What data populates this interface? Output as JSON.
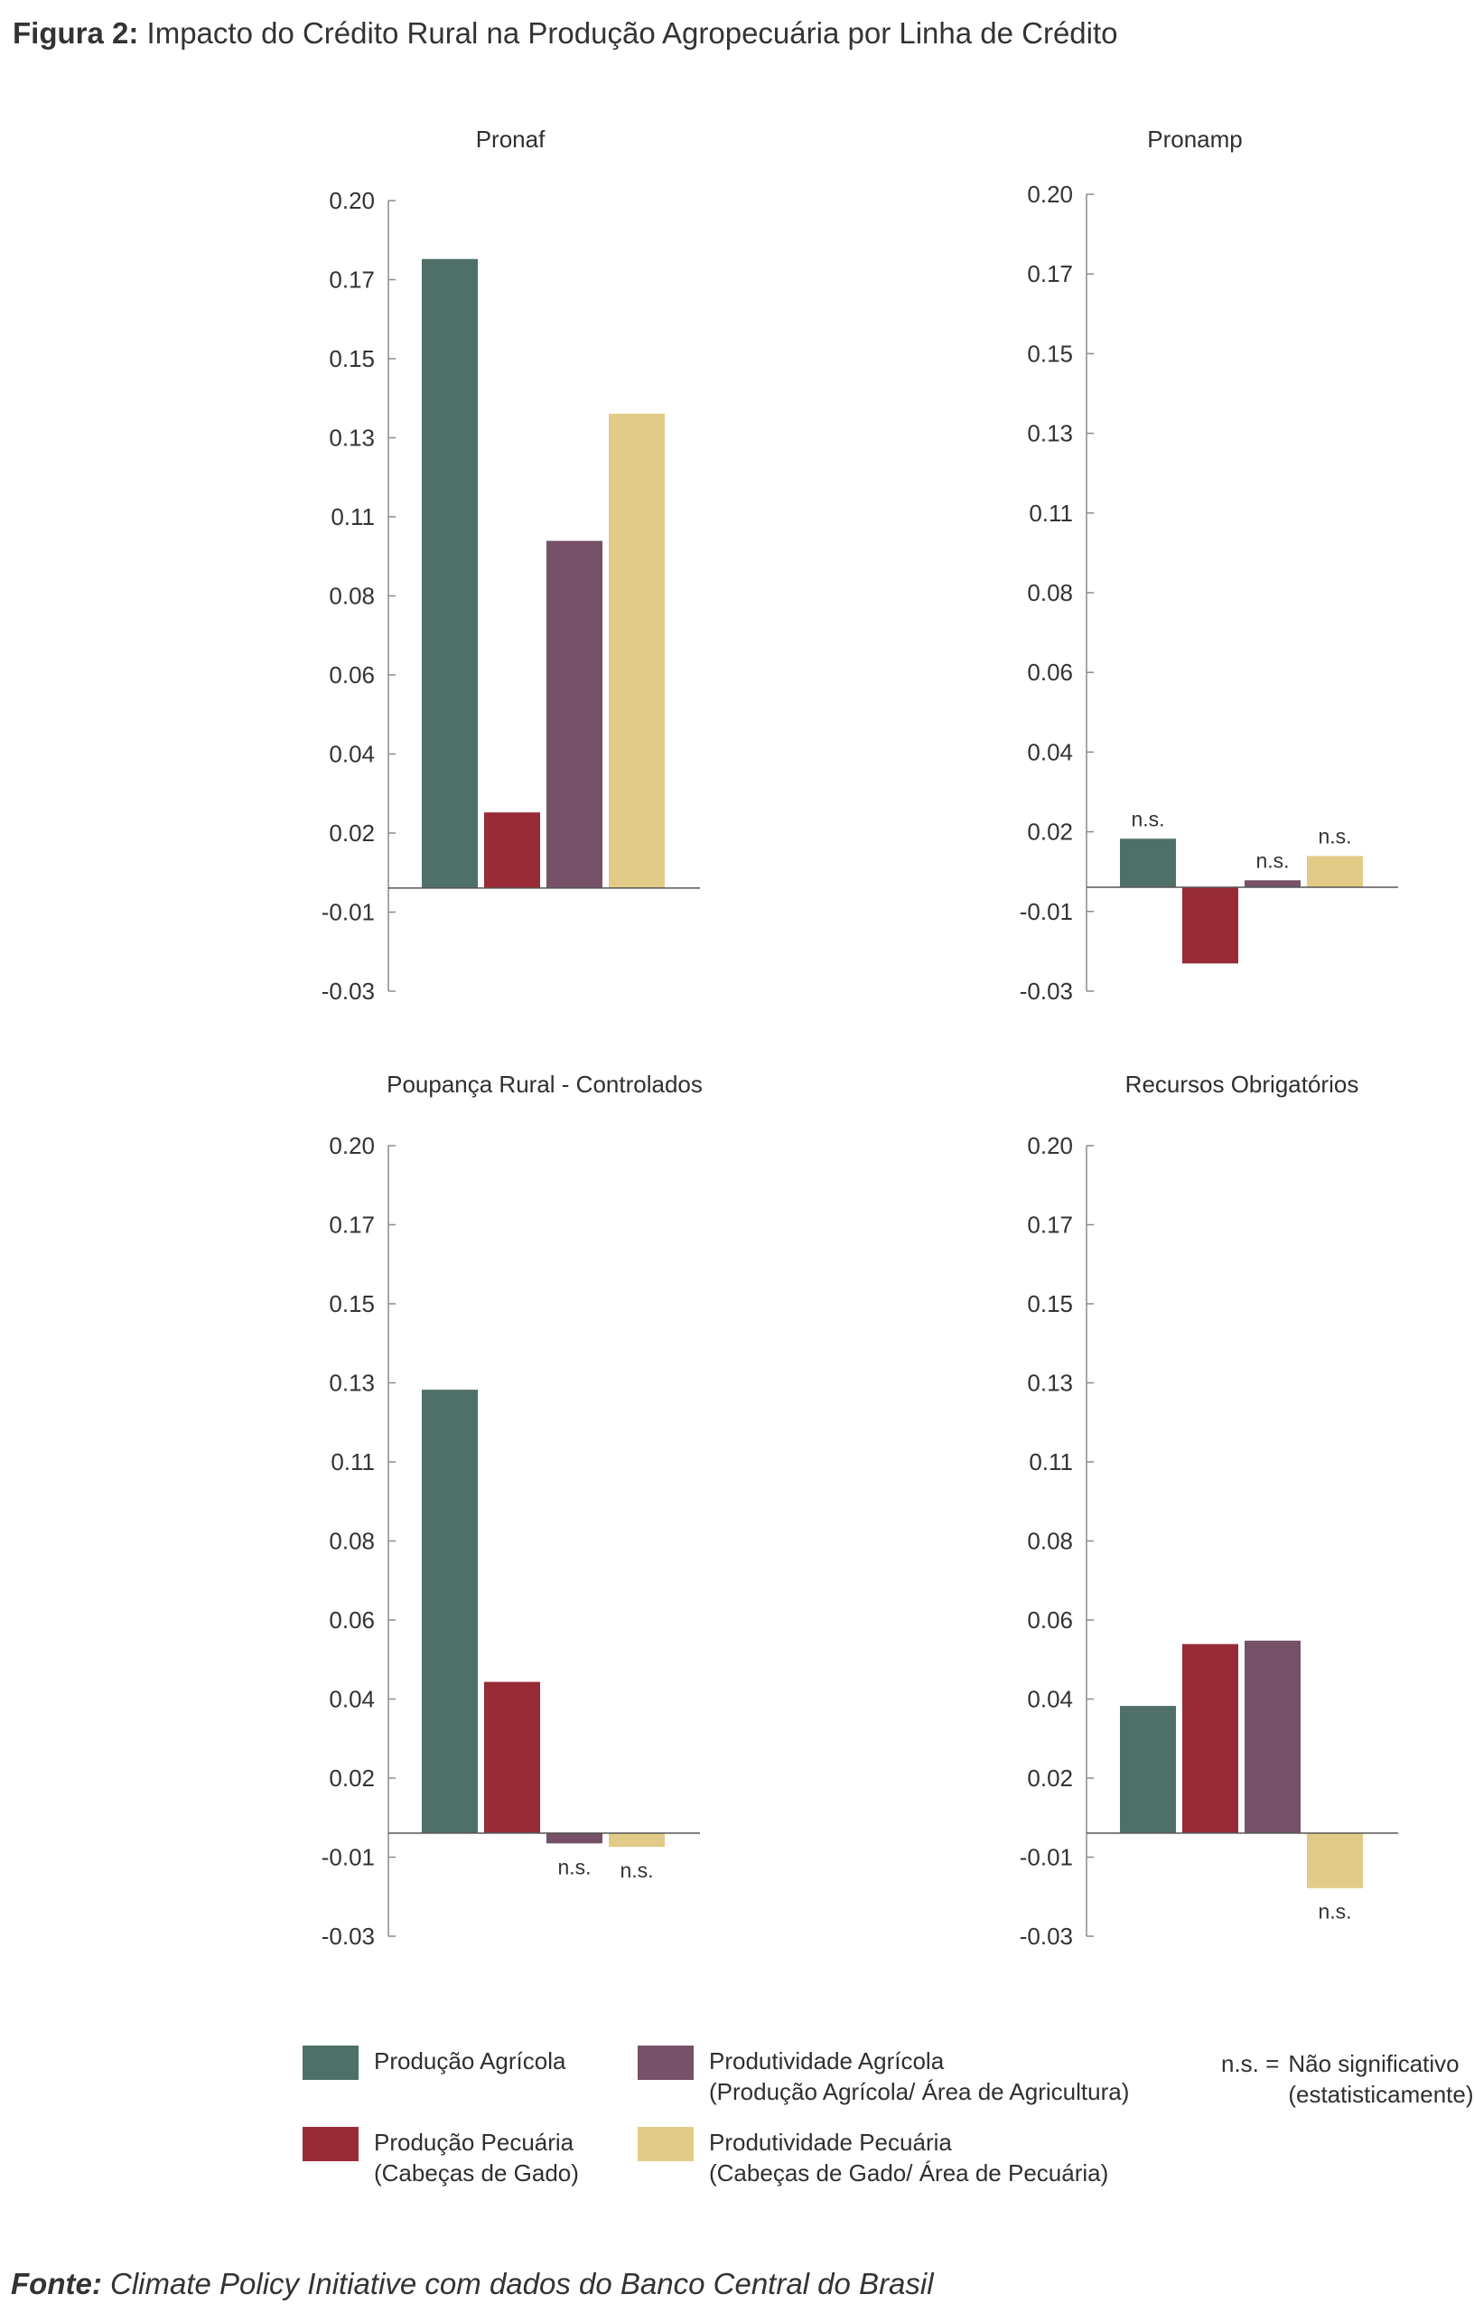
{
  "figure": {
    "title_prefix": "Figura 2:",
    "title_text": "Impacto do Crédito Rural na Produção Agropecuária por Linha de Crédito"
  },
  "chart_data": [
    {
      "type": "bar",
      "title": "Pronaf",
      "categories": [
        "Produção Agrícola",
        "Produção Pecuária",
        "Produtividade Agrícola",
        "Produtividade Pecuária"
      ],
      "values": [
        0.183,
        0.022,
        0.101,
        0.138
      ],
      "bar_labels": [
        "",
        "",
        "",
        ""
      ],
      "ylim": [
        -0.03,
        0.2
      ],
      "yticks": [
        "0.20",
        "0.17",
        "0.15",
        "0.13",
        "0.11",
        "0.08",
        "0.06",
        "0.04",
        "0.02",
        "-0.01",
        "-0.03"
      ]
    },
    {
      "type": "bar",
      "title": "Pronamp",
      "categories": [
        "Produção Agrícola",
        "Produção Pecuária",
        "Produtividade Agrícola",
        "Produtividade Pecuária"
      ],
      "values": [
        0.014,
        -0.022,
        0.002,
        0.009
      ],
      "bar_labels": [
        "n.s.",
        "",
        "n.s.",
        "n.s."
      ],
      "ylim": [
        -0.03,
        0.2
      ],
      "yticks": [
        "0.20",
        "0.17",
        "0.15",
        "0.13",
        "0.11",
        "0.08",
        "0.06",
        "0.04",
        "0.02",
        "-0.01",
        "-0.03"
      ]
    },
    {
      "type": "bar",
      "title": "Poupança Rural - Controlados",
      "categories": [
        "Produção Agrícola",
        "Produção Pecuária",
        "Produtividade Agrícola",
        "Produtividade Pecuária"
      ],
      "values": [
        0.129,
        0.044,
        -0.003,
        -0.004
      ],
      "bar_labels": [
        "",
        "",
        "n.s.",
        "n.s."
      ],
      "ylim": [
        -0.03,
        0.2
      ],
      "yticks": [
        "0.20",
        "0.17",
        "0.15",
        "0.13",
        "0.11",
        "0.08",
        "0.06",
        "0.04",
        "0.02",
        "-0.01",
        "-0.03"
      ]
    },
    {
      "type": "bar",
      "title": "Recursos Obrigatórios",
      "categories": [
        "Produção Agrícola",
        "Produção Pecuária",
        "Produtividade Agrícola",
        "Produtividade Pecuária"
      ],
      "values": [
        0.037,
        0.055,
        0.056,
        -0.016
      ],
      "bar_labels": [
        "",
        "",
        "",
        "n.s."
      ],
      "ylim": [
        -0.03,
        0.2
      ],
      "yticks": [
        "0.20",
        "0.17",
        "0.15",
        "0.13",
        "0.11",
        "0.08",
        "0.06",
        "0.04",
        "0.02",
        "-0.01",
        "-0.03"
      ]
    }
  ],
  "series_colors": [
    "#4e7068",
    "#982b35",
    "#765167",
    "#e2cb86"
  ],
  "legend": {
    "items": [
      {
        "line1": "Produção Agrícola",
        "line2": "",
        "color": "#4e7068"
      },
      {
        "line1": "Produtividade Agrícola",
        "line2": "(Produção Agrícola/ Área de Agricultura)",
        "color": "#765167"
      },
      {
        "line1": "Produção Pecuária",
        "line2": "(Cabeças de Gado)",
        "color": "#982b35"
      },
      {
        "line1": "Produtividade Pecuária",
        "line2": "(Cabeças de Gado/ Área de Pecuária)",
        "color": "#e2cb86"
      }
    ],
    "ns_key": "n.s. =",
    "ns_line1": "Não significativo",
    "ns_line2": "(estatisticamente)"
  },
  "source": {
    "prefix": "Fonte:",
    "text": "Climate Policy Initiative com dados do Banco Central do Brasil"
  }
}
